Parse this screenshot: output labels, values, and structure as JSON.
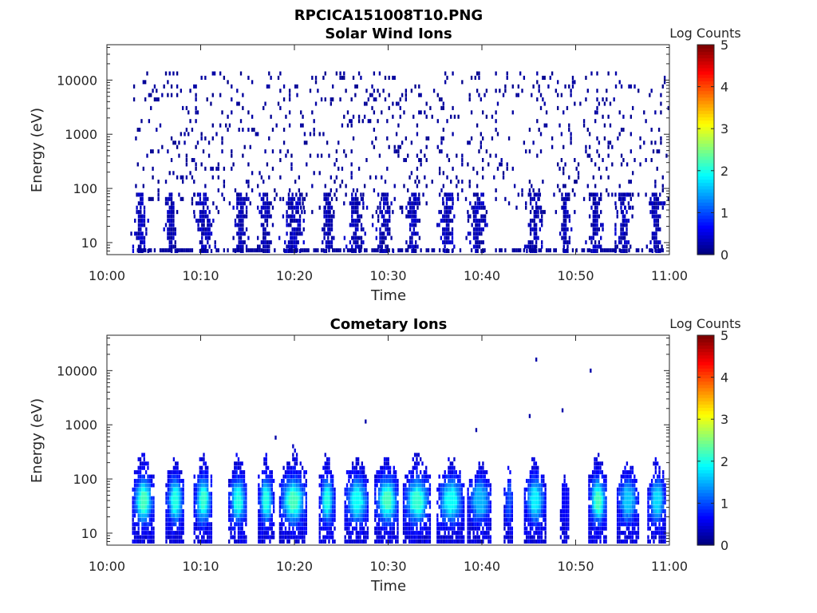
{
  "figure_title": "RPCICA151008T10.PNG",
  "chart_data": [
    {
      "type": "heatmap",
      "title": "Solar Wind Ions",
      "xlabel": "Time",
      "ylabel": "Energy (eV)",
      "x_ticks": [
        "10:00",
        "10:10",
        "10:20",
        "10:30",
        "10:40",
        "10:50",
        "11:00"
      ],
      "y_ticks": [
        "10",
        "100",
        "1000",
        "10000"
      ],
      "y_scale": "log",
      "ylim": [
        6,
        45000
      ],
      "xlim_minutes": [
        0,
        60
      ],
      "colorbar": {
        "label": "Log Counts",
        "ticks": [
          "0",
          "1",
          "2",
          "3",
          "4",
          "5"
        ],
        "range": [
          0,
          5
        ],
        "colormap": "jet"
      },
      "pattern": "sparse",
      "bursts": [
        {
          "t": 3.5,
          "w": 0.4,
          "peak": 1.2
        },
        {
          "t": 6.8,
          "w": 0.4,
          "peak": 1.0
        },
        {
          "t": 10.3,
          "w": 0.5,
          "peak": 1.1
        },
        {
          "t": 14.2,
          "w": 0.4,
          "peak": 1.0
        },
        {
          "t": 16.8,
          "w": 0.4,
          "peak": 1.0
        },
        {
          "t": 19.8,
          "w": 0.6,
          "peak": 1.2
        },
        {
          "t": 23.5,
          "w": 0.4,
          "peak": 1.0
        },
        {
          "t": 26.5,
          "w": 0.5,
          "peak": 1.1
        },
        {
          "t": 29.5,
          "w": 0.5,
          "peak": 1.1
        },
        {
          "t": 32.5,
          "w": 0.5,
          "peak": 1.1
        },
        {
          "t": 36.2,
          "w": 0.5,
          "peak": 1.2
        },
        {
          "t": 39.5,
          "w": 0.5,
          "peak": 1.1
        },
        {
          "t": 45.5,
          "w": 0.4,
          "peak": 1.0
        },
        {
          "t": 48.8,
          "w": 0.3,
          "peak": 0.9
        },
        {
          "t": 52.0,
          "w": 0.4,
          "peak": 1.0
        },
        {
          "t": 55.0,
          "w": 0.5,
          "peak": 1.1
        },
        {
          "t": 58.5,
          "w": 0.4,
          "peak": 1.0
        }
      ]
    },
    {
      "type": "heatmap",
      "title": "Cometary Ions",
      "xlabel": "Time",
      "ylabel": "Energy (eV)",
      "x_ticks": [
        "10:00",
        "10:10",
        "10:20",
        "10:30",
        "10:40",
        "10:50",
        "11:00"
      ],
      "y_ticks": [
        "10",
        "100",
        "1000",
        "10000"
      ],
      "y_scale": "log",
      "ylim": [
        6,
        45000
      ],
      "xlim_minutes": [
        0,
        60
      ],
      "colorbar": {
        "label": "Log Counts",
        "ticks": [
          "0",
          "1",
          "2",
          "3",
          "4",
          "5"
        ],
        "range": [
          0,
          5
        ],
        "colormap": "jet"
      },
      "pattern": "bursts",
      "bursts": [
        {
          "t": 3.8,
          "w": 0.7,
          "peak": 2.2
        },
        {
          "t": 7.2,
          "w": 0.6,
          "peak": 2.0
        },
        {
          "t": 10.2,
          "w": 0.6,
          "peak": 2.1
        },
        {
          "t": 13.9,
          "w": 0.6,
          "peak": 2.0
        },
        {
          "t": 16.9,
          "w": 0.5,
          "peak": 2.0
        },
        {
          "t": 19.8,
          "w": 0.9,
          "peak": 2.2
        },
        {
          "t": 23.4,
          "w": 0.5,
          "peak": 2.0
        },
        {
          "t": 26.6,
          "w": 0.8,
          "peak": 1.9
        },
        {
          "t": 29.8,
          "w": 0.8,
          "peak": 2.2
        },
        {
          "t": 33.0,
          "w": 0.9,
          "peak": 2.1
        },
        {
          "t": 36.6,
          "w": 0.9,
          "peak": 1.9
        },
        {
          "t": 39.7,
          "w": 0.8,
          "peak": 1.5
        },
        {
          "t": 42.8,
          "w": 0.3,
          "peak": 1.0
        },
        {
          "t": 45.6,
          "w": 0.7,
          "peak": 1.8
        },
        {
          "t": 48.8,
          "w": 0.3,
          "peak": 0.6
        },
        {
          "t": 52.3,
          "w": 0.6,
          "peak": 2.2
        },
        {
          "t": 55.5,
          "w": 0.7,
          "peak": 1.6
        },
        {
          "t": 58.6,
          "w": 0.6,
          "peak": 1.7
        }
      ],
      "outliers": [
        {
          "t": 27.5,
          "e": 1150
        },
        {
          "t": 39.3,
          "e": 800
        },
        {
          "t": 45.0,
          "e": 1450
        },
        {
          "t": 45.7,
          "e": 16000
        },
        {
          "t": 48.5,
          "e": 1850
        },
        {
          "t": 51.5,
          "e": 10000
        },
        {
          "t": 17.9,
          "e": 580
        }
      ]
    }
  ]
}
